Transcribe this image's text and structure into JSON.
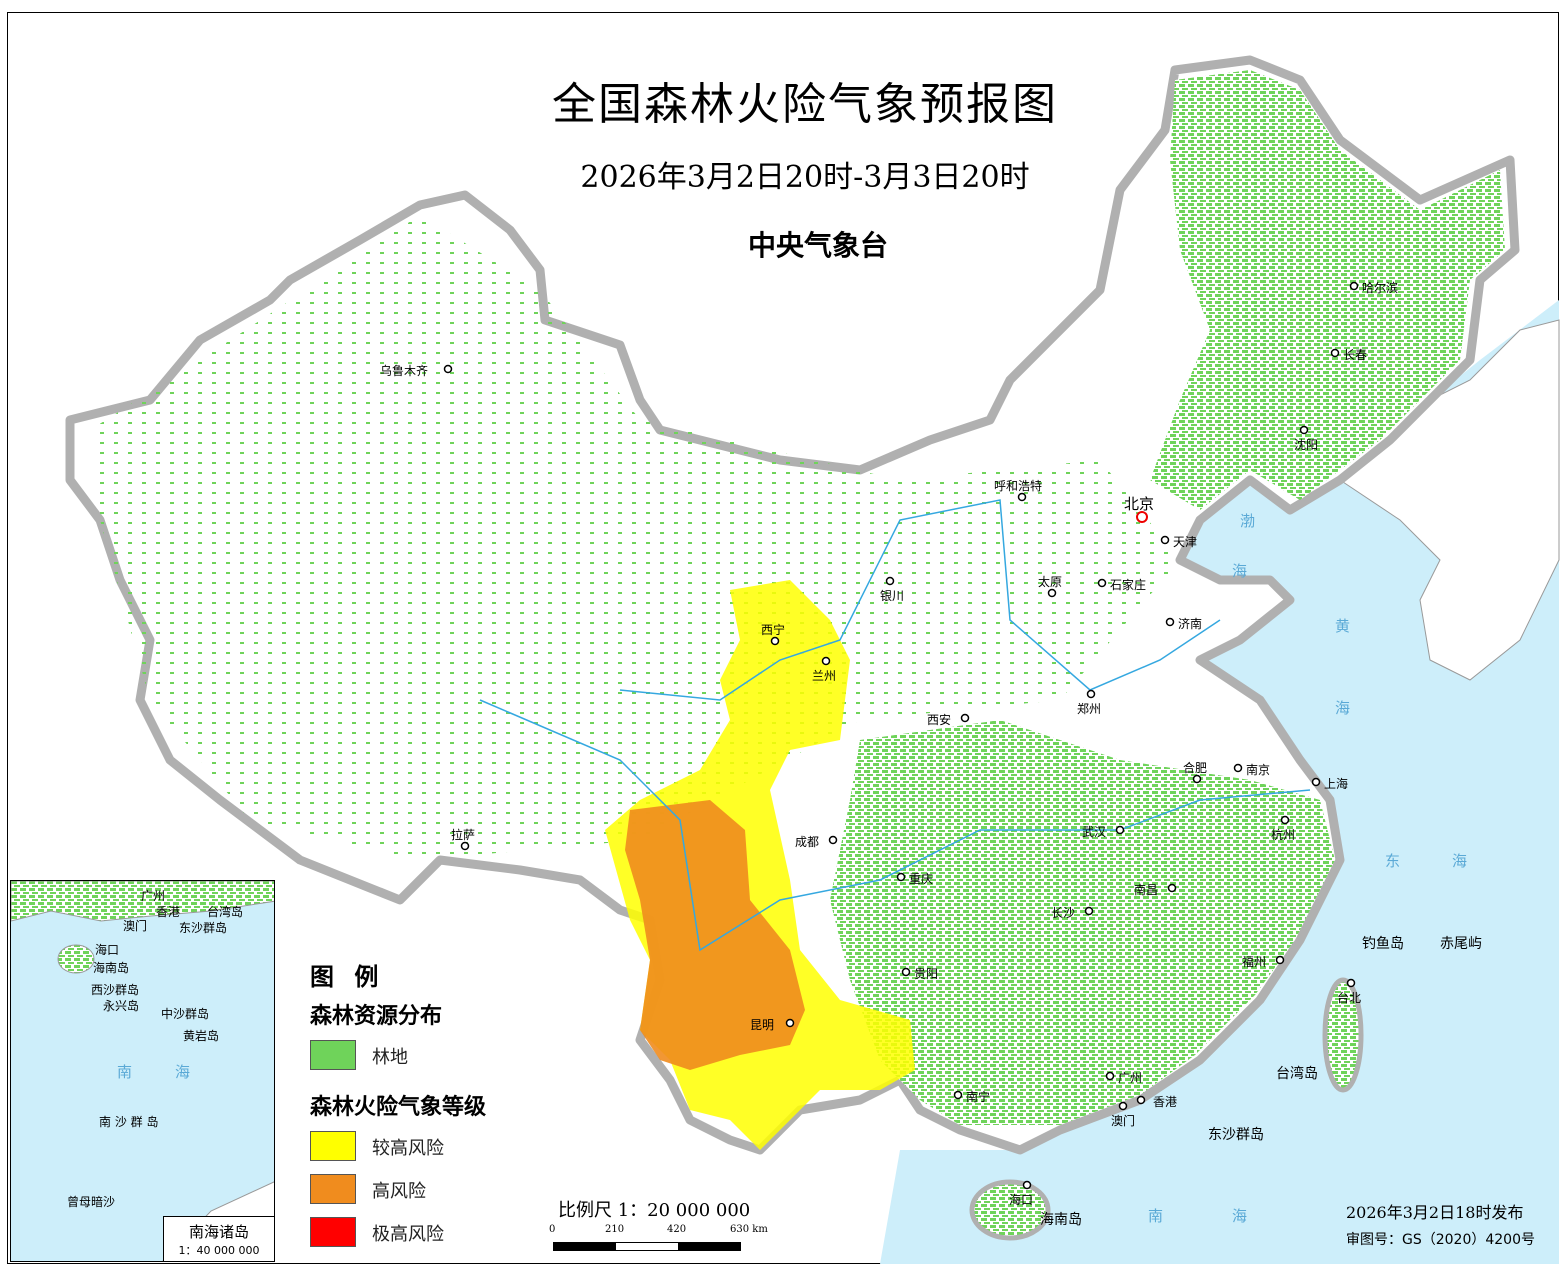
{
  "header": {
    "title": "全国森林火险气象预报图",
    "subtitle": "2026年3月2日20时-3月3日20时",
    "agency": "中央气象台"
  },
  "cities": [
    "乌鲁木齐",
    "哈尔滨",
    "长春",
    "沈阳",
    "呼和浩特",
    "北京",
    "天津",
    "太原",
    "石家庄",
    "银川",
    "济南",
    "西宁",
    "兰州",
    "西安",
    "郑州",
    "合肥",
    "南京",
    "上海",
    "拉萨",
    "成都",
    "武汉",
    "杭州",
    "重庆",
    "南昌",
    "长沙",
    "贵阳",
    "福州",
    "昆明",
    "台北",
    "南宁",
    "广州",
    "香港",
    "澳门",
    "海口"
  ],
  "places": [
    "钓鱼岛",
    "赤尾屿",
    "台湾岛",
    "东沙群岛",
    "海南岛"
  ],
  "seas": [
    "渤",
    "海",
    "黄",
    "海",
    "东",
    "海",
    "南",
    "海"
  ],
  "legend": {
    "title": "图 例",
    "forest_heading": "森林资源分布",
    "forest_label": "林地",
    "risk_heading": "森林火险气象等级",
    "levels": [
      {
        "label": "较高风险",
        "color": "#ffff00"
      },
      {
        "label": "高风险",
        "color": "#f08c1e"
      },
      {
        "label": "极高风险",
        "color": "#ff0000"
      }
    ],
    "forest_color": "#6fd35a"
  },
  "scale": {
    "label": "比例尺 1：20 000 000",
    "ticks": [
      "0",
      "210",
      "420",
      "630 km"
    ]
  },
  "inset": {
    "title": "南海诸岛",
    "scale": "1：40 000 000",
    "labels": [
      "广州",
      "香港",
      "澳门",
      "台湾岛",
      "东沙群岛",
      "海口",
      "海南岛",
      "西沙群岛",
      "永兴岛",
      "中沙群岛",
      "黄岩岛",
      "南",
      "海",
      "南 沙 群 岛",
      "曾母暗沙"
    ]
  },
  "footer": {
    "issued": "2026年3月2日18时发布",
    "approval": "审图号：GS（2020）4200号"
  },
  "colors": {
    "sea": "#cdeefa",
    "border": "#b0b0b0",
    "river": "#35a8e0"
  }
}
